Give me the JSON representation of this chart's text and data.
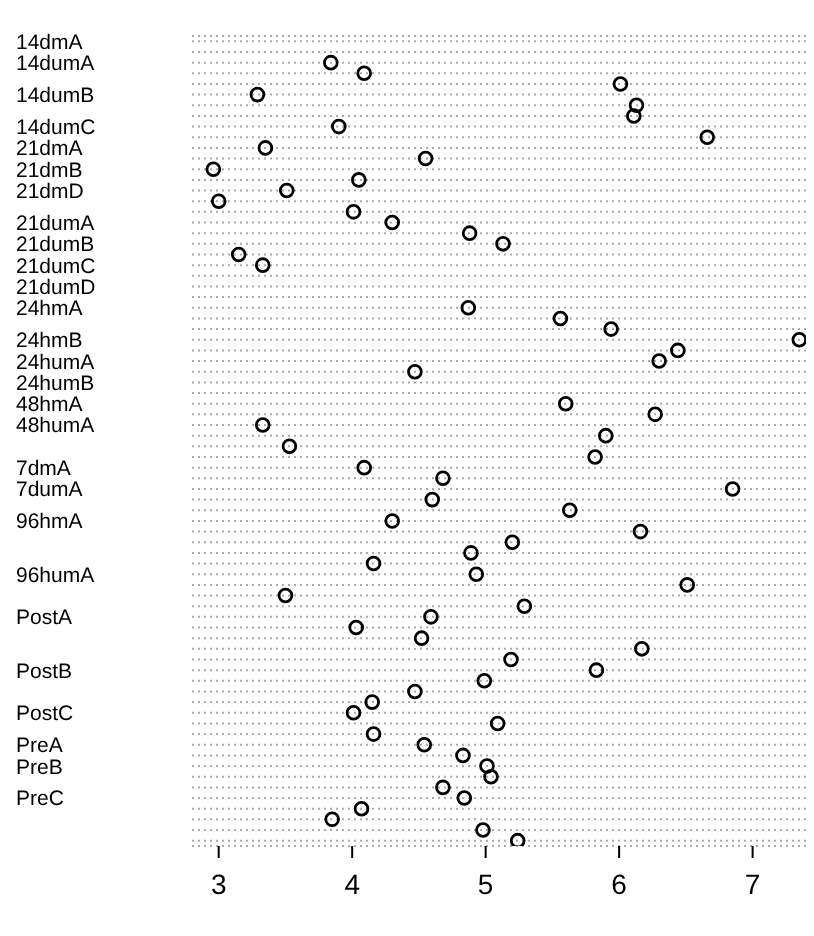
{
  "chart_data": {
    "type": "scatter",
    "orientation": "horizontal",
    "marker": "circle",
    "grid": "y",
    "xlim": [
      2.8,
      7.4
    ],
    "xticks": [
      3,
      4,
      5,
      6,
      7
    ],
    "categories": [
      "14dmA",
      null,
      "14dumA",
      null,
      null,
      "14dumB",
      null,
      null,
      "14dumC",
      null,
      "21dmA",
      null,
      "21dmB",
      null,
      "21dmD",
      null,
      null,
      "21dumA",
      null,
      "21dumB",
      null,
      "21dumC",
      null,
      "21dumD",
      null,
      "24hmA",
      null,
      null,
      "24hmB",
      null,
      "24humA",
      null,
      "24humB",
      null,
      "48hmA",
      null,
      "48humA",
      null,
      null,
      null,
      "7dmA",
      null,
      "7dumA",
      null,
      null,
      "96hmA",
      null,
      null,
      null,
      null,
      "96humA",
      null,
      null,
      null,
      "PostA",
      null,
      null,
      null,
      null,
      "PostB",
      null,
      null,
      null,
      "PostC",
      null,
      null,
      "PreA",
      null,
      "PreB",
      null,
      null,
      "PreC",
      null,
      null,
      null,
      null
    ],
    "series": [
      {
        "color": "#000000",
        "values": [
          null,
          null,
          3.84,
          4.09,
          6.01,
          3.29,
          6.13,
          6.11,
          3.9,
          6.66,
          3.35,
          4.55,
          2.96,
          4.05,
          3.51,
          3.0,
          4.01,
          4.3,
          4.88,
          5.13,
          3.15,
          3.33,
          null,
          null,
          null,
          4.87,
          5.56,
          5.94,
          7.35,
          6.44,
          6.3,
          4.47,
          null,
          null,
          5.6,
          6.27,
          3.33,
          5.9,
          3.53,
          5.82,
          4.09,
          4.68,
          6.85,
          4.6,
          5.63,
          4.3,
          6.16,
          5.2,
          4.89,
          4.16,
          4.93,
          6.51,
          3.5,
          5.29,
          4.59,
          4.03,
          4.52,
          6.17,
          5.19,
          5.83,
          4.99,
          4.47,
          4.15,
          4.01,
          5.09,
          4.16,
          4.54,
          4.83,
          5.01,
          5.04,
          4.68,
          4.84,
          4.07,
          3.85,
          4.98,
          5.24
        ]
      }
    ]
  }
}
